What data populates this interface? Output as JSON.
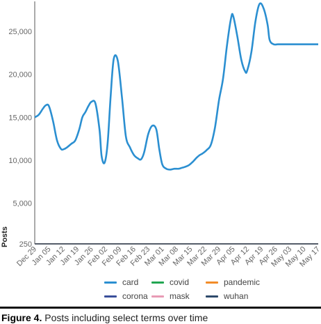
{
  "chart_data": {
    "type": "line",
    "ylabel": "Posts",
    "ylim": [
      250,
      28500
    ],
    "yticks": [
      250,
      5000,
      10000,
      15000,
      20000,
      25000
    ],
    "ytick_labels": [
      "250",
      "5,000",
      "10,000",
      "15,000",
      "20,000",
      "25,000"
    ],
    "x_labels": [
      "Dec 29",
      "Jan 05",
      "Jan 12",
      "Jan 19",
      "Jan 26",
      "Feb 02",
      "Feb 09",
      "Feb 16",
      "Feb 23",
      "Mar 01",
      "Mar 08",
      "Mar 15",
      "Mar 22",
      "Mar 29",
      "Apr 05",
      "Apr 12",
      "Apr 19",
      "Apr 26",
      "May 03",
      "May 10",
      "May 17"
    ],
    "x_sample_days": [
      0,
      2,
      4,
      5.5,
      7,
      9,
      11,
      13,
      14.5,
      16,
      18,
      20,
      22,
      23.5,
      25,
      26.5,
      28,
      30,
      32,
      33,
      34.5,
      36,
      37.5,
      39,
      41,
      43,
      45,
      47,
      49,
      51,
      52.5,
      54,
      56,
      58,
      60,
      61.5,
      63,
      65,
      67,
      69,
      71,
      72.5,
      74,
      76,
      78,
      80,
      81.5,
      83,
      85,
      87,
      89,
      91,
      93,
      95,
      97,
      98,
      100,
      102,
      104,
      105,
      107,
      109,
      111,
      113,
      115,
      116,
      118,
      120,
      122,
      124,
      126,
      128,
      130,
      132,
      134,
      135,
      137,
      139,
      140
    ],
    "series": [
      {
        "name": "card",
        "color": "#2b8fd1",
        "values": [
          15000,
          15300,
          16000,
          16400,
          16300,
          14600,
          12300,
          11300,
          11300,
          11500,
          11900,
          12300,
          13600,
          15000,
          15600,
          16300,
          16800,
          16600,
          13500,
          10500,
          9700,
          12000,
          17500,
          21800,
          21600,
          17500,
          12800,
          11500,
          10600,
          10200,
          10100,
          10900,
          13000,
          14000,
          13600,
          11300,
          9500,
          9000,
          8900,
          9000,
          9000,
          9100,
          9200,
          9400,
          9800,
          10300,
          10600,
          10800,
          11200,
          11800,
          13800,
          17000,
          19500,
          23500,
          26600,
          26800,
          24500,
          21700,
          20300,
          20500,
          22600,
          26200,
          28200,
          27700,
          25800,
          24000,
          23500,
          23500,
          23500,
          23500,
          23500,
          23500,
          23500,
          23500,
          23500,
          23500,
          23500,
          23500,
          23500
        ]
      },
      {
        "name": "corona",
        "color": "#3a4f9a"
      },
      {
        "name": "covid",
        "color": "#22a652"
      },
      {
        "name": "mask",
        "color": "#e89bb5"
      },
      {
        "name": "pandemic",
        "color": "#f28c28"
      },
      {
        "name": "wuhan",
        "color": "#2e4a6b"
      }
    ],
    "legend_order": [
      "card",
      "covid",
      "pandemic",
      "corona",
      "mask",
      "wuhan"
    ]
  },
  "caption": {
    "label": "Figure 4.",
    "text": " Posts including select terms over time"
  }
}
